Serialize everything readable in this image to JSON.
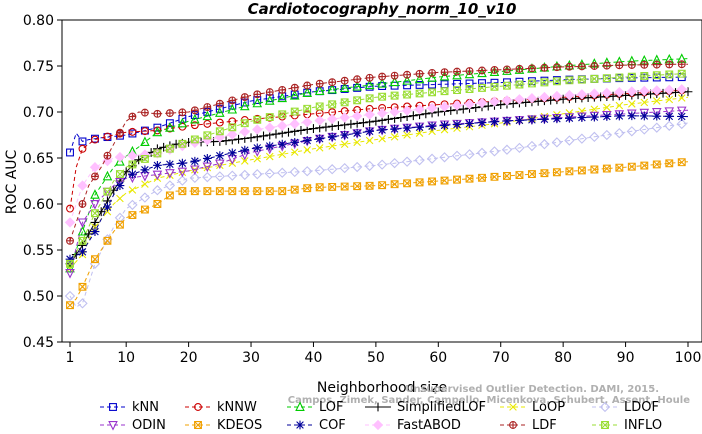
{
  "chart_data": {
    "type": "line",
    "title": "Cardiotocography_norm_10_v10",
    "xlabel": "Neighborhood size",
    "ylabel": "ROC AUC",
    "xlim": [
      1,
      100
    ],
    "ylim": [
      0.45,
      0.8
    ],
    "x_ticks": [
      1,
      10,
      20,
      30,
      40,
      50,
      60,
      70,
      80,
      90,
      100
    ],
    "y_ticks": [
      "0.45",
      "0.50",
      "0.55",
      "0.60",
      "0.65",
      "0.70",
      "0.75",
      "0.80"
    ],
    "credit": {
      "line1": "Unsupervised Outlier Detection. DAMI, 2015.",
      "line2": "Campos, Zimek, Sander, Campello, Micenkova, Schubert, Assent, Houle"
    },
    "series": [
      {
        "name": "kNN",
        "color": "#0000cc",
        "marker": "square",
        "line": "dash",
        "anchors": [
          [
            1,
            0.656
          ],
          [
            2,
            0.677
          ],
          [
            3,
            0.668
          ],
          [
            4,
            0.67
          ],
          [
            6,
            0.672
          ],
          [
            10,
            0.675
          ],
          [
            15,
            0.683
          ],
          [
            20,
            0.695
          ],
          [
            30,
            0.712
          ],
          [
            40,
            0.722
          ],
          [
            50,
            0.728
          ],
          [
            60,
            0.73
          ],
          [
            70,
            0.732
          ],
          [
            80,
            0.735
          ],
          [
            90,
            0.737
          ],
          [
            100,
            0.738
          ]
        ]
      },
      {
        "name": "kNNW",
        "color": "#cc0000",
        "marker": "circle",
        "line": "dash",
        "anchors": [
          [
            1,
            0.595
          ],
          [
            2,
            0.64
          ],
          [
            3,
            0.66
          ],
          [
            5,
            0.67
          ],
          [
            8,
            0.675
          ],
          [
            10,
            0.678
          ],
          [
            15,
            0.68
          ],
          [
            20,
            0.685
          ],
          [
            30,
            0.692
          ],
          [
            40,
            0.698
          ],
          [
            50,
            0.704
          ],
          [
            60,
            0.708
          ],
          [
            70,
            0.712
          ],
          [
            80,
            0.716
          ],
          [
            90,
            0.72
          ],
          [
            100,
            0.724
          ]
        ]
      },
      {
        "name": "LOF",
        "color": "#00cc00",
        "marker": "triangle-up",
        "line": "dash",
        "anchors": [
          [
            1,
            0.53
          ],
          [
            3,
            0.57
          ],
          [
            5,
            0.61
          ],
          [
            8,
            0.64
          ],
          [
            10,
            0.652
          ],
          [
            12,
            0.662
          ],
          [
            15,
            0.678
          ],
          [
            20,
            0.69
          ],
          [
            30,
            0.708
          ],
          [
            40,
            0.722
          ],
          [
            50,
            0.73
          ],
          [
            60,
            0.738
          ],
          [
            70,
            0.744
          ],
          [
            80,
            0.75
          ],
          [
            90,
            0.755
          ],
          [
            100,
            0.758
          ]
        ]
      },
      {
        "name": "SimplifiedLOF",
        "color": "#000000",
        "marker": "plus",
        "line": "solid",
        "anchors": [
          [
            1,
            0.535
          ],
          [
            3,
            0.555
          ],
          [
            5,
            0.58
          ],
          [
            8,
            0.615
          ],
          [
            10,
            0.635
          ],
          [
            12,
            0.648
          ],
          [
            15,
            0.66
          ],
          [
            18,
            0.665
          ],
          [
            20,
            0.667
          ],
          [
            25,
            0.668
          ],
          [
            30,
            0.672
          ],
          [
            40,
            0.682
          ],
          [
            50,
            0.69
          ],
          [
            60,
            0.7
          ],
          [
            70,
            0.708
          ],
          [
            80,
            0.714
          ],
          [
            90,
            0.718
          ],
          [
            100,
            0.722
          ]
        ]
      },
      {
        "name": "LoOP",
        "color": "#e8e800",
        "marker": "x",
        "line": "dash",
        "anchors": [
          [
            1,
            0.53
          ],
          [
            3,
            0.545
          ],
          [
            5,
            0.575
          ],
          [
            8,
            0.6
          ],
          [
            10,
            0.612
          ],
          [
            15,
            0.628
          ],
          [
            20,
            0.636
          ],
          [
            30,
            0.648
          ],
          [
            40,
            0.66
          ],
          [
            50,
            0.67
          ],
          [
            60,
            0.68
          ],
          [
            70,
            0.688
          ],
          [
            80,
            0.698
          ],
          [
            90,
            0.708
          ],
          [
            100,
            0.716
          ]
        ]
      },
      {
        "name": "LDOF",
        "color": "#c0c0f0",
        "marker": "diamond",
        "line": "dash",
        "anchors": [
          [
            1,
            0.5
          ],
          [
            2,
            0.488
          ],
          [
            3,
            0.492
          ],
          [
            5,
            0.535
          ],
          [
            8,
            0.575
          ],
          [
            10,
            0.595
          ],
          [
            15,
            0.615
          ],
          [
            20,
            0.628
          ],
          [
            30,
            0.632
          ],
          [
            40,
            0.636
          ],
          [
            50,
            0.642
          ],
          [
            60,
            0.65
          ],
          [
            70,
            0.658
          ],
          [
            80,
            0.668
          ],
          [
            90,
            0.678
          ],
          [
            100,
            0.688
          ]
        ]
      },
      {
        "name": "ODIN",
        "color": "#9933cc",
        "marker": "triangle-down",
        "line": "dash",
        "anchors": [
          [
            1,
            0.525
          ],
          [
            3,
            0.58
          ],
          [
            5,
            0.6
          ],
          [
            8,
            0.62
          ],
          [
            10,
            0.628
          ],
          [
            15,
            0.632
          ],
          [
            20,
            0.636
          ],
          [
            25,
            0.644
          ],
          [
            30,
            0.656
          ],
          [
            40,
            0.67
          ],
          [
            50,
            0.68
          ],
          [
            60,
            0.686
          ],
          [
            70,
            0.69
          ],
          [
            80,
            0.694
          ],
          [
            90,
            0.698
          ],
          [
            100,
            0.702
          ]
        ]
      },
      {
        "name": "KDEOS",
        "color": "#f0a000",
        "marker": "square-x",
        "line": "dash",
        "anchors": [
          [
            1,
            0.49
          ],
          [
            2,
            0.497
          ],
          [
            3,
            0.51
          ],
          [
            5,
            0.54
          ],
          [
            8,
            0.57
          ],
          [
            10,
            0.585
          ],
          [
            15,
            0.6
          ],
          [
            18,
            0.614
          ],
          [
            20,
            0.614
          ],
          [
            30,
            0.614
          ],
          [
            35,
            0.614
          ],
          [
            40,
            0.618
          ],
          [
            50,
            0.62
          ],
          [
            60,
            0.625
          ],
          [
            70,
            0.63
          ],
          [
            80,
            0.635
          ],
          [
            90,
            0.64
          ],
          [
            100,
            0.646
          ]
        ]
      },
      {
        "name": "COF",
        "color": "#000099",
        "marker": "asterisk",
        "line": "dash",
        "anchors": [
          [
            1,
            0.54
          ],
          [
            3,
            0.548
          ],
          [
            5,
            0.57
          ],
          [
            8,
            0.61
          ],
          [
            10,
            0.63
          ],
          [
            15,
            0.642
          ],
          [
            20,
            0.645
          ],
          [
            30,
            0.66
          ],
          [
            40,
            0.67
          ],
          [
            50,
            0.68
          ],
          [
            60,
            0.685
          ],
          [
            70,
            0.69
          ],
          [
            80,
            0.693
          ],
          [
            90,
            0.696
          ],
          [
            100,
            0.695
          ]
        ]
      },
      {
        "name": "FastABOD",
        "color": "#ffc0ff",
        "marker": "diamond-filled",
        "line": "dash",
        "anchors": [
          [
            1,
            0.58
          ],
          [
            3,
            0.62
          ],
          [
            5,
            0.64
          ],
          [
            8,
            0.65
          ],
          [
            10,
            0.652
          ],
          [
            15,
            0.655
          ],
          [
            20,
            0.665
          ],
          [
            30,
            0.68
          ],
          [
            40,
            0.69
          ],
          [
            50,
            0.698
          ],
          [
            60,
            0.705
          ],
          [
            70,
            0.712
          ],
          [
            80,
            0.718
          ],
          [
            90,
            0.722
          ],
          [
            100,
            0.725
          ]
        ]
      },
      {
        "name": "LDF",
        "color": "#aa2222",
        "marker": "circle-plus",
        "line": "dash",
        "anchors": [
          [
            1,
            0.56
          ],
          [
            3,
            0.6
          ],
          [
            4,
            0.62
          ],
          [
            6,
            0.64
          ],
          [
            8,
            0.665
          ],
          [
            10,
            0.69
          ],
          [
            12,
            0.7
          ],
          [
            15,
            0.698
          ],
          [
            20,
            0.7
          ],
          [
            30,
            0.718
          ],
          [
            40,
            0.73
          ],
          [
            50,
            0.738
          ],
          [
            60,
            0.743
          ],
          [
            70,
            0.746
          ],
          [
            80,
            0.749
          ],
          [
            90,
            0.751
          ],
          [
            100,
            0.752
          ]
        ]
      },
      {
        "name": "INFLO",
        "color": "#99dd33",
        "marker": "square-x",
        "line": "dash",
        "anchors": [
          [
            1,
            0.535
          ],
          [
            3,
            0.56
          ],
          [
            5,
            0.59
          ],
          [
            8,
            0.625
          ],
          [
            10,
            0.64
          ],
          [
            15,
            0.655
          ],
          [
            20,
            0.668
          ],
          [
            30,
            0.69
          ],
          [
            40,
            0.705
          ],
          [
            50,
            0.716
          ],
          [
            60,
            0.722
          ],
          [
            70,
            0.728
          ],
          [
            80,
            0.734
          ],
          [
            90,
            0.738
          ],
          [
            100,
            0.742
          ]
        ]
      }
    ]
  }
}
